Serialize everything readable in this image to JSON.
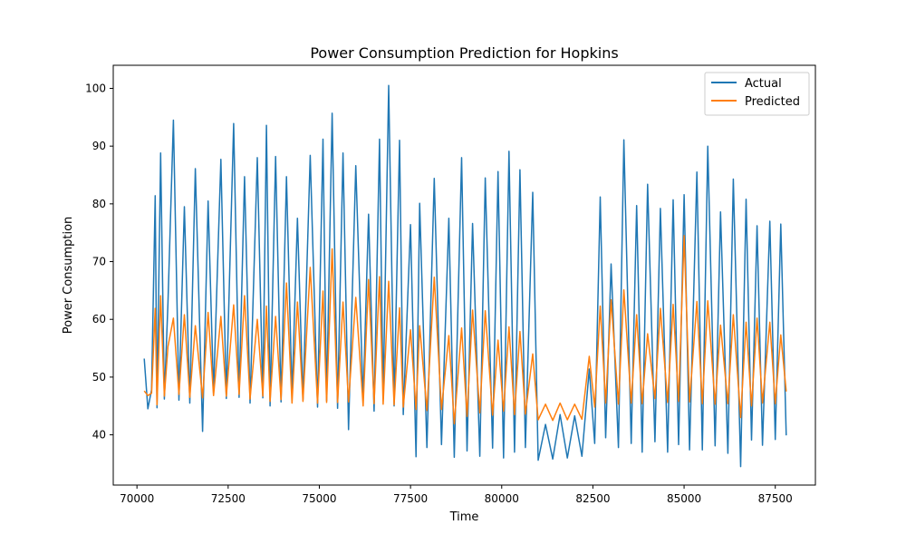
{
  "chart_data": {
    "type": "line",
    "title": "Power Consumption Prediction for Hopkins",
    "xlabel": "Time",
    "ylabel": "Power Consumption",
    "xlim": [
      69350,
      88600
    ],
    "ylim": [
      31.3,
      104
    ],
    "xticks": [
      70000,
      72500,
      75000,
      77500,
      80000,
      82500,
      85000,
      87500
    ],
    "xtick_labels": [
      "70000",
      "72500",
      "75000",
      "77500",
      "80000",
      "82500",
      "85000",
      "87500"
    ],
    "yticks": [
      40,
      50,
      60,
      70,
      80,
      90,
      100
    ],
    "ytick_labels": [
      "40",
      "50",
      "60",
      "70",
      "80",
      "90",
      "100"
    ],
    "grid": false,
    "legend_position": "top-right",
    "series": [
      {
        "name": "Actual",
        "color": "#1f77b4",
        "x": [
          70200,
          70300,
          70400,
          70500,
          70550,
          70650,
          70750,
          70850,
          71000,
          71150,
          71300,
          71450,
          71600,
          71800,
          71950,
          72100,
          72300,
          72450,
          72650,
          72800,
          72950,
          73100,
          73300,
          73450,
          73550,
          73650,
          73800,
          73950,
          74100,
          74250,
          74400,
          74550,
          74750,
          74950,
          75100,
          75200,
          75350,
          75500,
          75650,
          75800,
          76000,
          76200,
          76350,
          76500,
          76650,
          76750,
          76900,
          77050,
          77200,
          77300,
          77500,
          77650,
          77750,
          77950,
          78150,
          78350,
          78550,
          78700,
          78900,
          79050,
          79200,
          79400,
          79550,
          79750,
          79900,
          80050,
          80200,
          80350,
          80500,
          80650,
          80850,
          81000,
          81200,
          81400,
          81600,
          81800,
          82000,
          82200,
          82400,
          82550,
          82700,
          82850,
          83000,
          83200,
          83350,
          83550,
          83700,
          83850,
          84000,
          84200,
          84350,
          84550,
          84700,
          84850,
          85000,
          85150,
          85350,
          85500,
          85650,
          85850,
          86000,
          86200,
          86350,
          86550,
          86700,
          86850,
          87000,
          87150,
          87350,
          87500,
          87650,
          87800
        ],
        "values": [
          53.2,
          44.5,
          47.8,
          81.4,
          44.7,
          88.8,
          46.2,
          62.9,
          94.5,
          46.0,
          79.5,
          45.5,
          86.1,
          40.6,
          80.5,
          47.2,
          87.7,
          46.3,
          93.9,
          46.5,
          84.7,
          45.5,
          88.0,
          46.4,
          93.6,
          45.0,
          88.2,
          45.7,
          84.7,
          46.8,
          77.5,
          46.1,
          88.4,
          44.8,
          91.2,
          45.9,
          95.7,
          44.6,
          88.8,
          40.9,
          86.6,
          46.1,
          78.2,
          44.1,
          91.2,
          46.2,
          100.5,
          45.0,
          91.0,
          43.5,
          76.4,
          36.2,
          80.1,
          37.8,
          84.4,
          38.3,
          77.5,
          36.1,
          88.0,
          37.2,
          76.6,
          36.3,
          84.5,
          37.7,
          85.6,
          36.0,
          89.1,
          37.0,
          85.9,
          37.8,
          82.0,
          35.6,
          41.8,
          35.8,
          43.5,
          36.0,
          43.3,
          36.3,
          51.4,
          38.5,
          81.2,
          39.5,
          69.6,
          37.8,
          91.1,
          38.5,
          79.7,
          37.0,
          83.4,
          38.8,
          79.2,
          37.0,
          80.7,
          38.3,
          81.6,
          37.4,
          85.5,
          37.4,
          90.0,
          38.1,
          78.6,
          36.8,
          84.3,
          34.5,
          80.8,
          39.1,
          76.2,
          38.2,
          77.0,
          39.2,
          76.5,
          39.9
        ]
      },
      {
        "name": "Predicted",
        "color": "#ff7f0e",
        "x": [
          70200,
          70300,
          70400,
          70500,
          70550,
          70650,
          70750,
          70850,
          71000,
          71150,
          71300,
          71450,
          71600,
          71800,
          71950,
          72100,
          72300,
          72450,
          72650,
          72800,
          72950,
          73100,
          73300,
          73450,
          73550,
          73650,
          73800,
          73950,
          74100,
          74250,
          74400,
          74550,
          74750,
          74950,
          75100,
          75200,
          75350,
          75500,
          75650,
          75800,
          76000,
          76200,
          76350,
          76500,
          76650,
          76750,
          76900,
          77050,
          77200,
          77300,
          77500,
          77650,
          77750,
          77950,
          78150,
          78350,
          78550,
          78700,
          78900,
          79050,
          79200,
          79400,
          79550,
          79750,
          79900,
          80050,
          80200,
          80350,
          80500,
          80650,
          80850,
          81000,
          81200,
          81400,
          81600,
          81800,
          82000,
          82200,
          82400,
          82550,
          82700,
          82850,
          83000,
          83200,
          83350,
          83550,
          83700,
          83850,
          84000,
          84200,
          84350,
          84550,
          84700,
          84850,
          85000,
          85150,
          85350,
          85500,
          85650,
          85850,
          86000,
          86200,
          86350,
          86550,
          86700,
          86850,
          87000,
          87150,
          87350,
          87500,
          87650,
          87800
        ],
        "values": [
          47.6,
          46.8,
          47.2,
          61.9,
          45.2,
          64.1,
          46.7,
          55.3,
          60.2,
          47.0,
          60.8,
          46.5,
          58.9,
          46.4,
          61.2,
          46.8,
          60.5,
          46.7,
          62.5,
          47.0,
          64.1,
          46.2,
          60.0,
          46.7,
          62.3,
          45.8,
          60.5,
          46.1,
          66.3,
          45.5,
          63.0,
          45.8,
          69.0,
          45.5,
          64.9,
          45.6,
          72.2,
          45.6,
          63.0,
          45.7,
          63.8,
          45.0,
          66.9,
          45.4,
          67.4,
          45.3,
          66.6,
          45.2,
          62.0,
          44.8,
          58.2,
          44.4,
          58.9,
          44.2,
          67.3,
          44.4,
          57.2,
          41.9,
          58.5,
          43.2,
          61.6,
          43.8,
          61.5,
          43.4,
          56.4,
          44.1,
          58.7,
          43.5,
          57.9,
          43.6,
          54.0,
          42.6,
          45.3,
          42.5,
          45.5,
          42.6,
          45.3,
          42.7,
          53.6,
          44.8,
          62.3,
          45.5,
          63.4,
          45.3,
          65.1,
          45.5,
          60.8,
          45.4,
          57.5,
          46.3,
          61.9,
          45.6,
          62.6,
          45.8,
          74.5,
          45.7,
          63.1,
          45.4,
          63.2,
          45.3,
          59.0,
          45.4,
          60.8,
          43.0,
          59.5,
          45.0,
          60.2,
          45.5,
          59.5,
          45.4,
          57.3,
          47.5
        ]
      }
    ]
  }
}
